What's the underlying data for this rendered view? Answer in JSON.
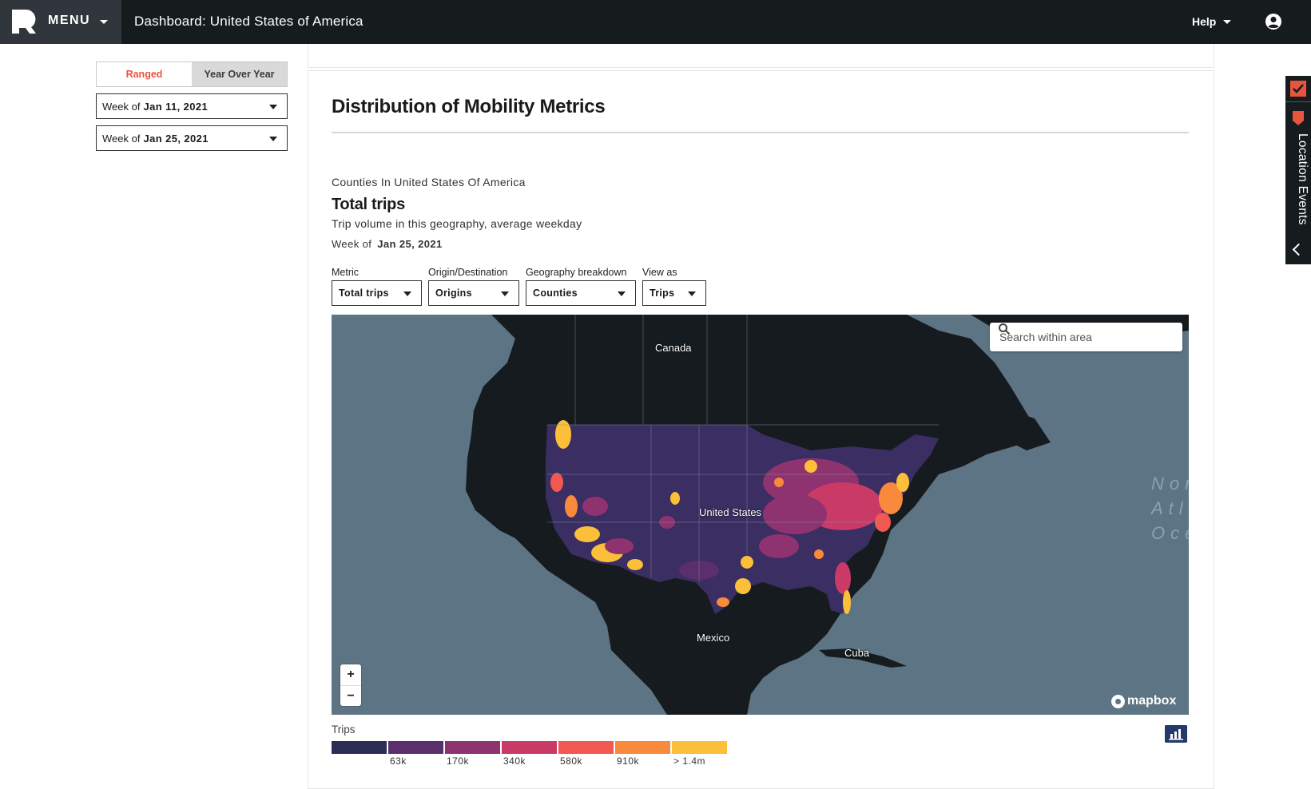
{
  "topbar": {
    "menu_label": "MENU",
    "title": "Dashboard: United States of America",
    "help_label": "Help"
  },
  "left_panel": {
    "mode_tabs": [
      {
        "label": "Ranged",
        "active": true
      },
      {
        "label": "Year Over Year",
        "active": false
      }
    ],
    "week_selects": [
      {
        "prefix": "Week of",
        "value": "Jan 11, 2021"
      },
      {
        "prefix": "Week of",
        "value": "Jan 25, 2021"
      }
    ]
  },
  "main": {
    "section_title": "Distribution of Mobility Metrics",
    "geography_label": "Counties In United States Of America",
    "metric_title": "Total trips",
    "metric_description": "Trip volume in this geography, average weekday",
    "week_prefix": "Week of",
    "week_value": "Jan 25, 2021",
    "controls": [
      {
        "label": "Metric",
        "value": "Total trips"
      },
      {
        "label": "Origin/Destination",
        "value": "Origins"
      },
      {
        "label": "Geography breakdown",
        "value": "Counties"
      },
      {
        "label": "View as",
        "value": "Trips"
      }
    ]
  },
  "map": {
    "search_placeholder": "Search within area",
    "zoom_in": "+",
    "zoom_out": "−",
    "labels": {
      "canada": "Canada",
      "united_states": "United States",
      "mexico": "Mexico",
      "cuba": "Cuba",
      "ocean_line1": "Nor",
      "ocean_line2": "Atla",
      "ocean_line3": "Oce"
    },
    "attribution": "mapbox",
    "colors": {
      "water": "#5d7484",
      "land": "#161b1f"
    }
  },
  "legend": {
    "title": "Trips",
    "colors": [
      "#2b2d55",
      "#5a2f6b",
      "#8f3270",
      "#c93a67",
      "#f2584f",
      "#f98a3b",
      "#fbbf3a"
    ],
    "ticks": [
      "63k",
      "170k",
      "340k",
      "580k",
      "910k",
      "> 1.4m"
    ]
  },
  "right_rail": {
    "label": "Location Events",
    "accent": "#e8553d"
  }
}
